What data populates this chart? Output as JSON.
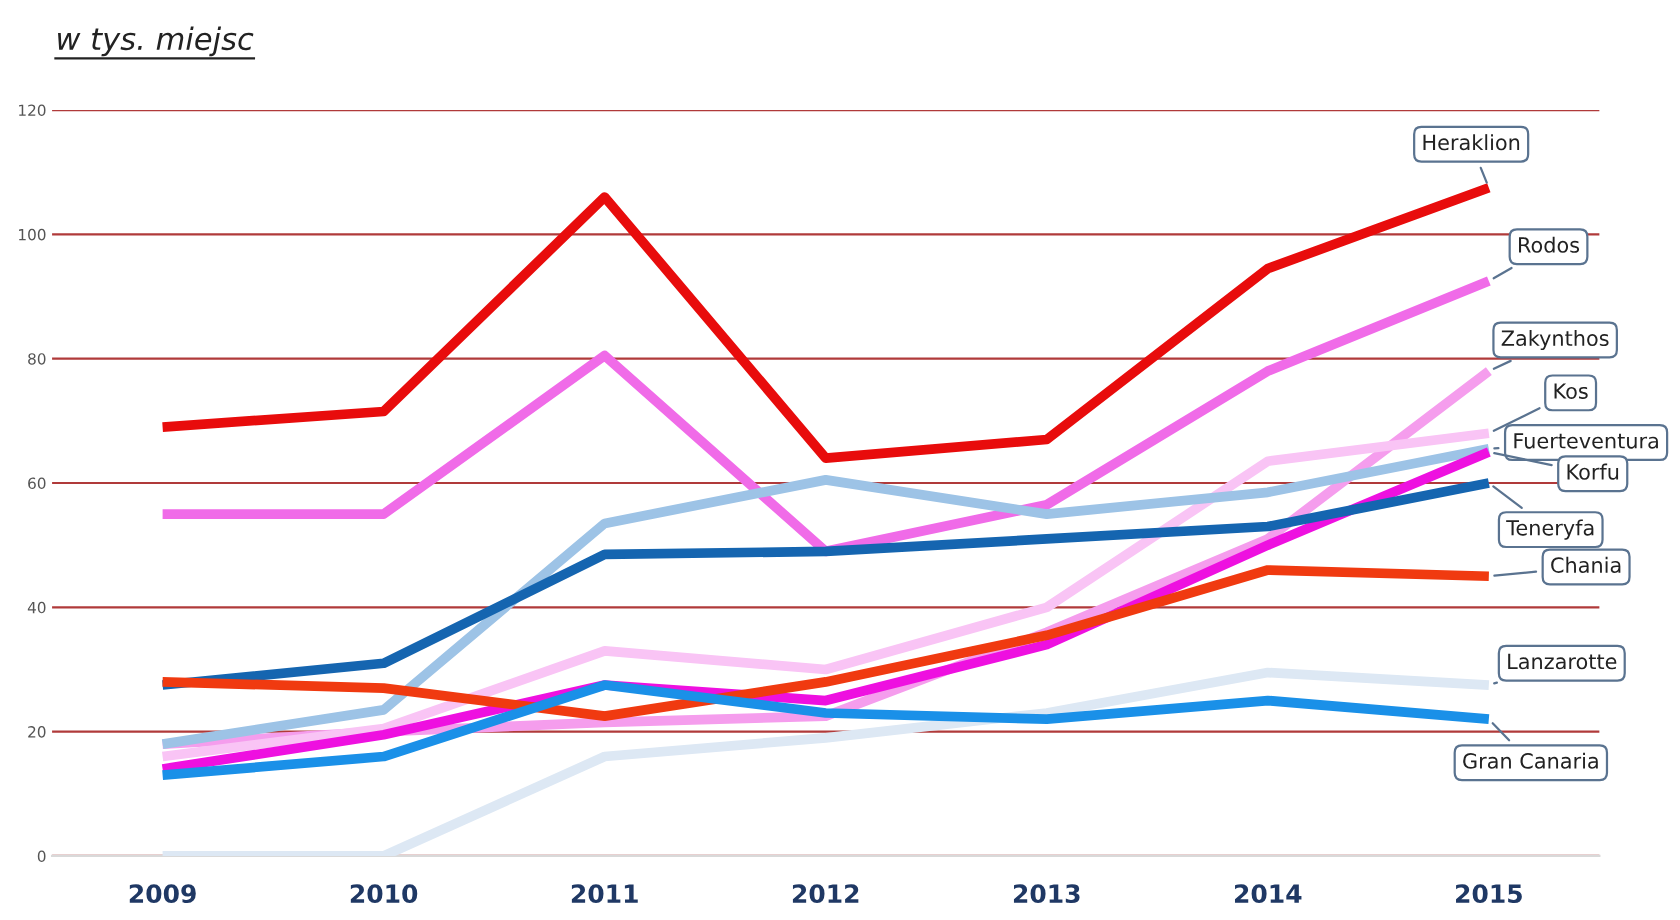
{
  "chart_data": {
    "type": "line",
    "title": "w tys. miejsc",
    "categories": [
      "2009",
      "2010",
      "2011",
      "2012",
      "2013",
      "2014",
      "2015"
    ],
    "ylim": [
      0,
      120
    ],
    "yticks": [
      0,
      20,
      40,
      60,
      80,
      100,
      120
    ],
    "grid": "y",
    "legend": false,
    "marker": "none",
    "line_style": "solid",
    "series": [
      {
        "name": "Heraklion",
        "color": "#e80c0c",
        "values": [
          69,
          71.5,
          106,
          64,
          67,
          94.5,
          107.5
        ]
      },
      {
        "name": "Rodos",
        "color": "#f06be8",
        "values": [
          55,
          55,
          80.5,
          49,
          56.5,
          78,
          92.5
        ]
      },
      {
        "name": "Zakynthos",
        "color": "#f59ded",
        "values": [
          18,
          20,
          21.5,
          22.5,
          36,
          51,
          78
        ]
      },
      {
        "name": "Kos",
        "color": "#f9c4f5",
        "values": [
          16,
          20.5,
          33,
          30,
          40,
          63.5,
          68
        ]
      },
      {
        "name": "Fuerteventura",
        "color": "#9dc3e6",
        "values": [
          18,
          23.5,
          53.5,
          60.5,
          55,
          58.5,
          65.5
        ]
      },
      {
        "name": "Korfu",
        "color": "#ee10e0",
        "values": [
          14,
          19.5,
          27.5,
          25,
          34,
          50,
          65
        ]
      },
      {
        "name": "Teneryfa",
        "color": "#1565b0",
        "values": [
          27.5,
          31,
          48.5,
          49,
          51,
          53,
          60
        ]
      },
      {
        "name": "Chania",
        "color": "#f03a10",
        "values": [
          28,
          27,
          22.5,
          28,
          35.5,
          46,
          45
        ]
      },
      {
        "name": "Lanzarotte",
        "color": "#dde8f4",
        "values": [
          0,
          0,
          16,
          19,
          23,
          29.5,
          27.5
        ]
      },
      {
        "name": "Gran Canaria",
        "color": "#1a90e8",
        "values": [
          13,
          16,
          27.5,
          23,
          22,
          25,
          22
        ]
      }
    ]
  }
}
